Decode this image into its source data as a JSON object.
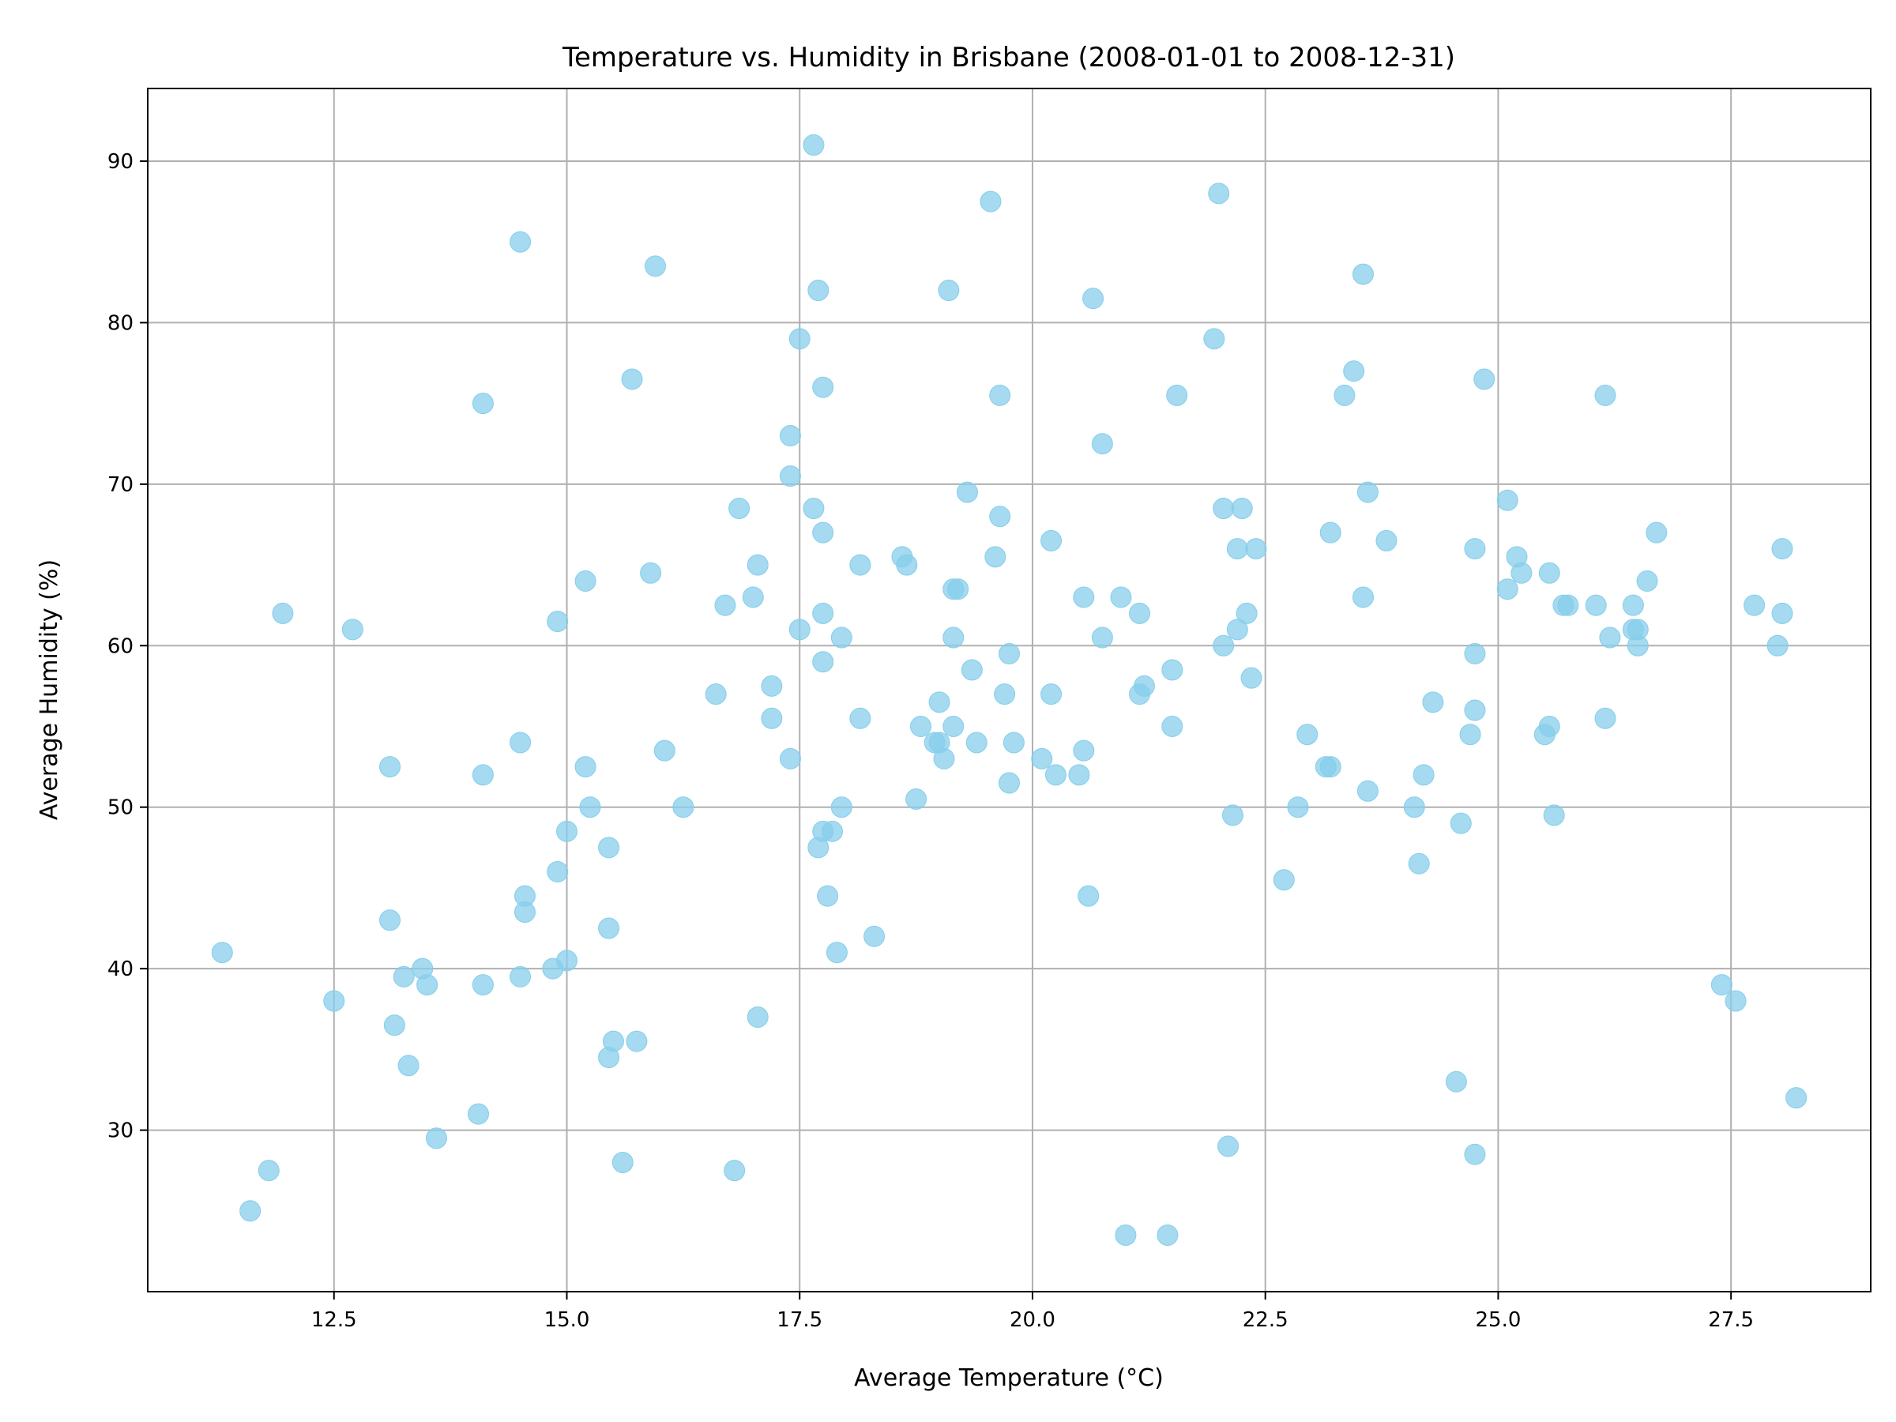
{
  "chart_data": {
    "type": "scatter",
    "title": "Temperature vs. Humidity in Brisbane (2008-01-01 to 2008-12-31)",
    "xlabel": "Average Temperature (°C)",
    "ylabel": "Average Humidity (%)",
    "xlim": [
      10.5,
      29.0
    ],
    "ylim": [
      20.0,
      94.5
    ],
    "xticks": [
      12.5,
      15.0,
      17.5,
      20.0,
      22.5,
      25.0,
      27.5
    ],
    "xtick_labels": [
      "12.5",
      "15.0",
      "17.5",
      "20.0",
      "22.5",
      "25.0",
      "27.5"
    ],
    "yticks": [
      30,
      40,
      50,
      60,
      70,
      80,
      90
    ],
    "ytick_labels": [
      "30",
      "40",
      "50",
      "60",
      "70",
      "80",
      "90"
    ],
    "grid": true,
    "legend": "none",
    "marker_color": "#87CEEB",
    "marker_opacity": 0.75,
    "points": [
      [
        11.3,
        41
      ],
      [
        11.6,
        25
      ],
      [
        11.8,
        27.5
      ],
      [
        11.95,
        62
      ],
      [
        12.5,
        38
      ],
      [
        12.7,
        61
      ],
      [
        13.1,
        52.5
      ],
      [
        13.1,
        43
      ],
      [
        13.15,
        36.5
      ],
      [
        13.25,
        39.5
      ],
      [
        13.3,
        34
      ],
      [
        13.45,
        40
      ],
      [
        13.5,
        39
      ],
      [
        13.6,
        29.5
      ],
      [
        14.05,
        31
      ],
      [
        14.1,
        75
      ],
      [
        14.1,
        52
      ],
      [
        14.1,
        39
      ],
      [
        14.5,
        85
      ],
      [
        14.5,
        54
      ],
      [
        14.5,
        39.5
      ],
      [
        14.55,
        44.5
      ],
      [
        14.55,
        43.5
      ],
      [
        14.85,
        40
      ],
      [
        14.9,
        61.5
      ],
      [
        14.9,
        46
      ],
      [
        15.0,
        48.5
      ],
      [
        15.0,
        40.5
      ],
      [
        15.2,
        64
      ],
      [
        15.2,
        52.5
      ],
      [
        15.25,
        50
      ],
      [
        15.45,
        47.5
      ],
      [
        15.45,
        42.5
      ],
      [
        15.45,
        34.5
      ],
      [
        15.5,
        35.5
      ],
      [
        15.6,
        28
      ],
      [
        15.7,
        76.5
      ],
      [
        15.75,
        35.5
      ],
      [
        15.9,
        64.5
      ],
      [
        15.95,
        83.5
      ],
      [
        16.05,
        53.5
      ],
      [
        16.25,
        50
      ],
      [
        16.6,
        57
      ],
      [
        16.7,
        62.5
      ],
      [
        16.8,
        27.5
      ],
      [
        16.85,
        68.5
      ],
      [
        17.0,
        63
      ],
      [
        17.05,
        65
      ],
      [
        17.05,
        37
      ],
      [
        17.2,
        57.5
      ],
      [
        17.2,
        55.5
      ],
      [
        17.4,
        73
      ],
      [
        17.4,
        70.5
      ],
      [
        17.4,
        53
      ],
      [
        17.5,
        79
      ],
      [
        17.5,
        61
      ],
      [
        17.65,
        91
      ],
      [
        17.65,
        68.5
      ],
      [
        17.7,
        82
      ],
      [
        17.7,
        47.5
      ],
      [
        17.75,
        76
      ],
      [
        17.75,
        67
      ],
      [
        17.75,
        62
      ],
      [
        17.75,
        59
      ],
      [
        17.75,
        48.5
      ],
      [
        17.8,
        44.5
      ],
      [
        17.85,
        48.5
      ],
      [
        17.9,
        41
      ],
      [
        17.95,
        60.5
      ],
      [
        17.95,
        50
      ],
      [
        18.15,
        65
      ],
      [
        18.15,
        55.5
      ],
      [
        18.3,
        42
      ],
      [
        18.6,
        65.5
      ],
      [
        18.65,
        65
      ],
      [
        18.75,
        50.5
      ],
      [
        18.8,
        55
      ],
      [
        18.95,
        54
      ],
      [
        19.0,
        56.5
      ],
      [
        19.0,
        54
      ],
      [
        19.05,
        53
      ],
      [
        19.1,
        82
      ],
      [
        19.15,
        63.5
      ],
      [
        19.15,
        60.5
      ],
      [
        19.15,
        55
      ],
      [
        19.2,
        63.5
      ],
      [
        19.3,
        69.5
      ],
      [
        19.35,
        58.5
      ],
      [
        19.4,
        54
      ],
      [
        19.55,
        87.5
      ],
      [
        19.6,
        65.5
      ],
      [
        19.65,
        75.5
      ],
      [
        19.65,
        68
      ],
      [
        19.7,
        57
      ],
      [
        19.75,
        59.5
      ],
      [
        19.75,
        51.5
      ],
      [
        19.8,
        54
      ],
      [
        20.1,
        53
      ],
      [
        20.2,
        66.5
      ],
      [
        20.2,
        57
      ],
      [
        20.25,
        52
      ],
      [
        20.5,
        52
      ],
      [
        20.55,
        63
      ],
      [
        20.55,
        53.5
      ],
      [
        20.6,
        44.5
      ],
      [
        20.65,
        81.5
      ],
      [
        20.75,
        72.5
      ],
      [
        20.75,
        60.5
      ],
      [
        20.95,
        63
      ],
      [
        21.0,
        23.5
      ],
      [
        21.15,
        62
      ],
      [
        21.15,
        57
      ],
      [
        21.2,
        57.5
      ],
      [
        21.45,
        23.5
      ],
      [
        21.5,
        58.5
      ],
      [
        21.5,
        55
      ],
      [
        21.55,
        75.5
      ],
      [
        21.95,
        79
      ],
      [
        22.0,
        88
      ],
      [
        22.05,
        68.5
      ],
      [
        22.05,
        60
      ],
      [
        22.1,
        29
      ],
      [
        22.15,
        49.5
      ],
      [
        22.2,
        66
      ],
      [
        22.2,
        61
      ],
      [
        22.25,
        68.5
      ],
      [
        22.3,
        62
      ],
      [
        22.35,
        58
      ],
      [
        22.4,
        66
      ],
      [
        22.7,
        45.5
      ],
      [
        22.85,
        50
      ],
      [
        22.95,
        54.5
      ],
      [
        23.15,
        52.5
      ],
      [
        23.2,
        67
      ],
      [
        23.2,
        52.5
      ],
      [
        23.35,
        75.5
      ],
      [
        23.45,
        77
      ],
      [
        23.55,
        83
      ],
      [
        23.55,
        63
      ],
      [
        23.6,
        69.5
      ],
      [
        23.6,
        51
      ],
      [
        23.8,
        66.5
      ],
      [
        24.1,
        50
      ],
      [
        24.15,
        46.5
      ],
      [
        24.2,
        52
      ],
      [
        24.3,
        56.5
      ],
      [
        24.55,
        33
      ],
      [
        24.6,
        49
      ],
      [
        24.7,
        54.5
      ],
      [
        24.75,
        66
      ],
      [
        24.75,
        59.5
      ],
      [
        24.75,
        56
      ],
      [
        24.75,
        28.5
      ],
      [
        24.85,
        76.5
      ],
      [
        25.1,
        69
      ],
      [
        25.1,
        63.5
      ],
      [
        25.2,
        65.5
      ],
      [
        25.25,
        64.5
      ],
      [
        25.5,
        54.5
      ],
      [
        25.55,
        64.5
      ],
      [
        25.55,
        55
      ],
      [
        25.6,
        49.5
      ],
      [
        25.7,
        62.5
      ],
      [
        25.75,
        62.5
      ],
      [
        26.05,
        62.5
      ],
      [
        26.15,
        75.5
      ],
      [
        26.15,
        55.5
      ],
      [
        26.2,
        60.5
      ],
      [
        26.45,
        62.5
      ],
      [
        26.45,
        61
      ],
      [
        26.5,
        61
      ],
      [
        26.5,
        60
      ],
      [
        26.6,
        64
      ],
      [
        26.7,
        67
      ],
      [
        27.4,
        39
      ],
      [
        27.55,
        38
      ],
      [
        27.75,
        62.5
      ],
      [
        28.0,
        60
      ],
      [
        28.05,
        66
      ],
      [
        28.05,
        62
      ],
      [
        28.2,
        32
      ]
    ]
  }
}
